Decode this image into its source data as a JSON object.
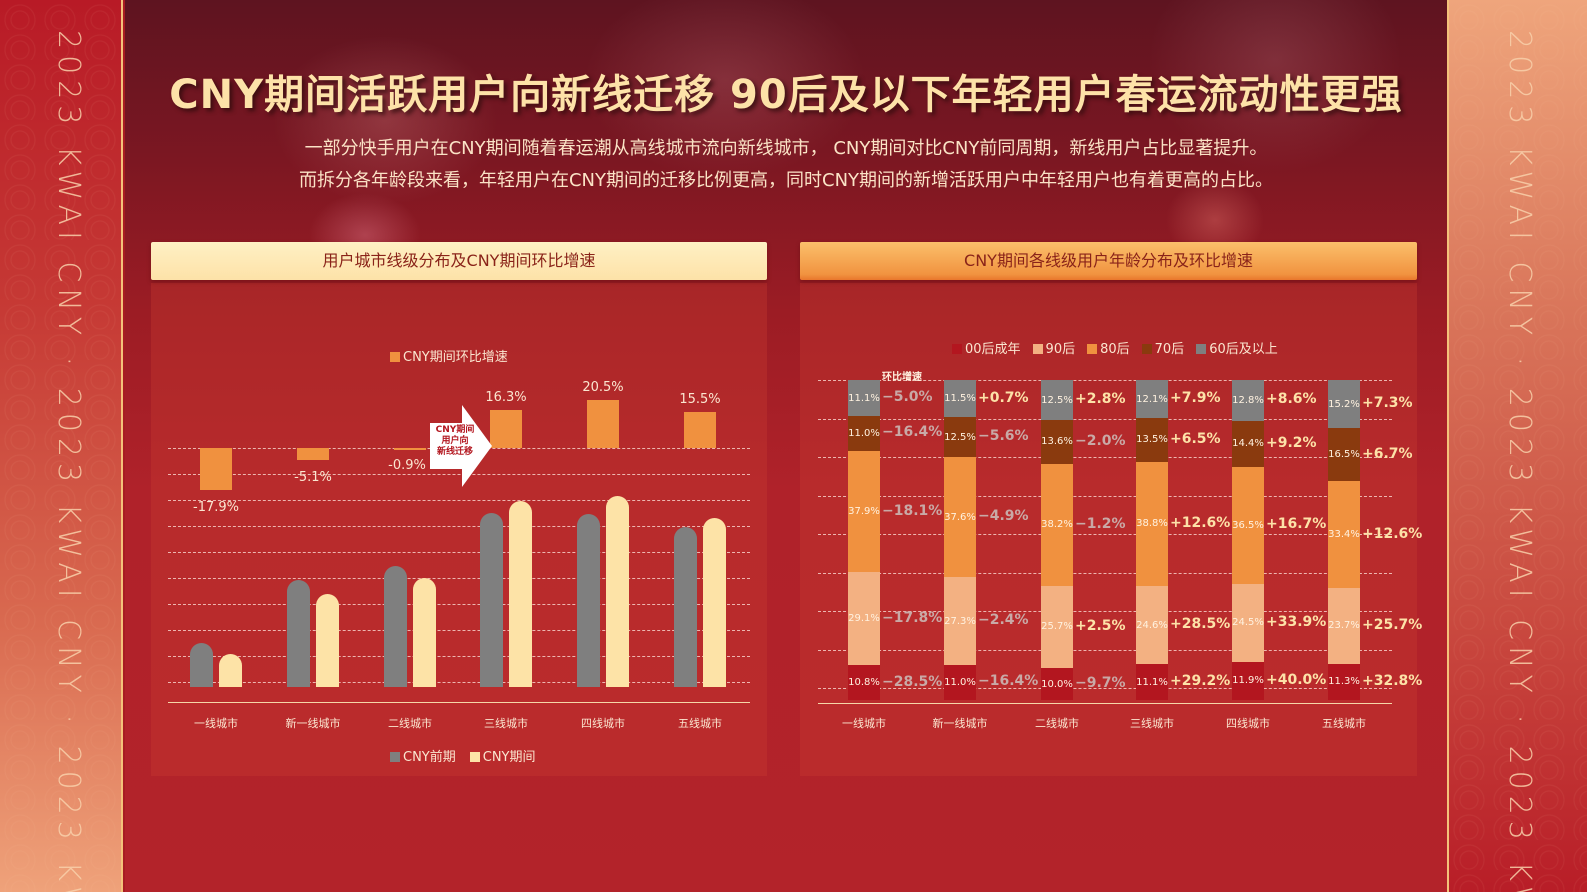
{
  "side_banner": {
    "left_text": "2023 KWAI CNY · 2023 KWAI CNY · 2023 KWAI CNY",
    "right_text": "2023 KWAI CNY · 2023 KWAI CNY · 2023 KWAI CNY"
  },
  "header": {
    "title": "CNY期间活跃用户向新线迁移 90后及以下年轻用户春运流动性更强",
    "subtitle_line1": "一部分快手用户在CNY期间随着春运潮从高线城市流向新线城市， CNY期间对比CNY前同周期，新线用户占比显著提升。",
    "subtitle_line2": "而拆分各年龄段来看，年轻用户在CNY期间的迁移比例更高，同时CNY期间的新增活跃用户中年轻用户也有着更高的占比。"
  },
  "colors": {
    "grey_pre": "#7f7f7f",
    "cream_during": "#fde3a7",
    "orange_growth": "#f0913f",
    "age_00": "#b3161f",
    "age_90": "#f3b182",
    "age_80": "#f0913f",
    "age_70": "#8a3a0e",
    "age_60": "#7f7f7f"
  },
  "left_panel": {
    "header": "用户城市线级分布及CNY期间环比增速",
    "legend_growth": "CNY期间环比增速",
    "legend_pre": "CNY前期",
    "legend_during": "CNY期间",
    "arrow_callout": [
      "CNY期间",
      "用户向",
      "新线迁移"
    ]
  },
  "right_panel": {
    "header": "CNY期间各线级用户年龄分布及环比增速",
    "growth_label": "环比增速",
    "legend": [
      "00后成年",
      "90后",
      "80后",
      "70后",
      "60后及以上"
    ]
  },
  "chart_data": [
    {
      "type": "bar",
      "title": "用户城市线级分布及CNY期间环比增速",
      "categories": [
        "一线城市",
        "新一线城市",
        "二线城市",
        "三线城市",
        "四线城市",
        "五线城市"
      ],
      "series": [
        {
          "name": "CNY前期",
          "values": [
            44,
            107,
            121,
            174,
            173,
            160
          ],
          "note": "relative bar heights (px), unlabeled"
        },
        {
          "name": "CNY期间",
          "values": [
            33,
            93,
            109,
            186,
            191,
            169
          ],
          "note": "relative bar heights (px), unlabeled"
        },
        {
          "name": "CNY期间环比增速",
          "values": [
            -17.9,
            -5.1,
            -0.9,
            16.3,
            20.5,
            15.5
          ],
          "labels": [
            "-17.9%",
            "-5.1%",
            "-0.9%",
            "16.3%",
            "20.5%",
            "15.5%"
          ]
        }
      ],
      "xlabel": "",
      "ylabel": "",
      "grid": true,
      "legend_position": "top (growth) and bottom (前期/期间)",
      "annotation": "CNY期间 用户向 新线迁移"
    },
    {
      "type": "bar",
      "stacked": true,
      "title": "CNY期间各线级用户年龄分布及环比增速",
      "categories": [
        "一线城市",
        "新一线城市",
        "二线城市",
        "三线城市",
        "四线城市",
        "五线城市"
      ],
      "series": [
        {
          "name": "00后成年",
          "values": [
            10.8,
            11.0,
            10.0,
            11.1,
            11.9,
            11.3
          ],
          "growth": [
            "-28.5%",
            "-16.4%",
            "-9.7%",
            "+29.2%",
            "+40.0%",
            "+32.8%"
          ]
        },
        {
          "name": "90后",
          "values": [
            29.1,
            27.3,
            25.7,
            24.6,
            24.5,
            23.7
          ],
          "growth": [
            "-17.8%",
            "-2.4%",
            "+2.5%",
            "+28.5%",
            "+33.9%",
            "+25.7%"
          ]
        },
        {
          "name": "80后",
          "values": [
            37.9,
            37.6,
            38.2,
            38.8,
            36.5,
            33.4
          ],
          "growth": [
            "-18.1%",
            "-4.9%",
            "-1.2%",
            "+12.6%",
            "+16.7%",
            "+12.6%"
          ]
        },
        {
          "name": "70后",
          "values": [
            11.0,
            12.5,
            13.6,
            13.5,
            14.4,
            16.5
          ],
          "growth": [
            "-16.4%",
            "-5.6%",
            "-2.0%",
            "+6.5%",
            "+9.2%",
            "+6.7%"
          ]
        },
        {
          "name": "60后及以上",
          "values": [
            11.1,
            11.5,
            12.5,
            12.1,
            12.8,
            15.2
          ],
          "growth": [
            "-5.0%",
            "+0.7%",
            "+2.8%",
            "+7.9%",
            "+8.6%",
            "+7.3%"
          ]
        }
      ],
      "ylim": [
        0,
        100
      ],
      "grid": true,
      "legend_position": "top",
      "annotation": "环比增速"
    }
  ]
}
